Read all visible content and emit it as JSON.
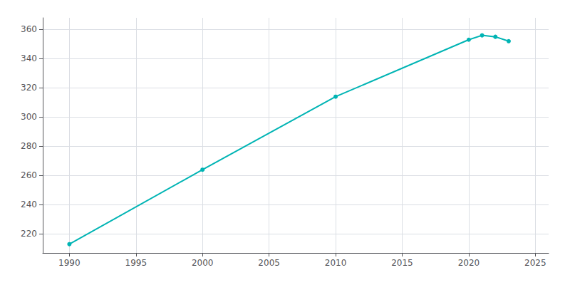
{
  "chart_data": {
    "type": "line",
    "x": [
      1990,
      2000,
      2010,
      2020,
      2021,
      2022,
      2023
    ],
    "values": [
      213,
      264,
      314,
      353,
      356,
      355,
      352
    ],
    "color": "#00b4b4",
    "marker": "circle",
    "xlim": [
      1988,
      2026
    ],
    "ylim": [
      207,
      368
    ],
    "xticks": [
      1990,
      1995,
      2000,
      2005,
      2010,
      2015,
      2020,
      2025
    ],
    "yticks": [
      220,
      240,
      260,
      280,
      300,
      320,
      340,
      360
    ],
    "grid": true
  }
}
